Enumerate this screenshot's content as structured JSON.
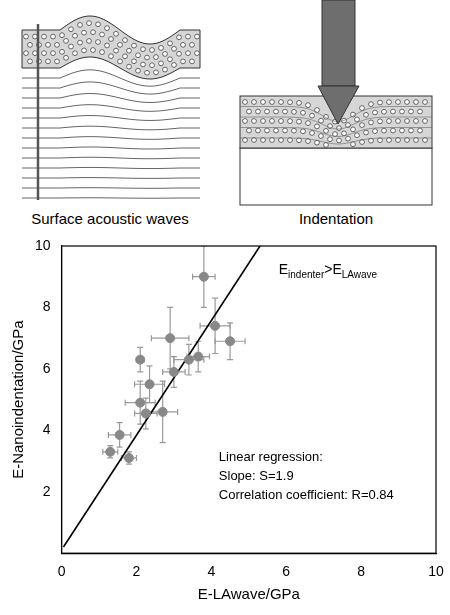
{
  "diagrams": [
    {
      "caption": "Surface acoustic waves"
    },
    {
      "caption": "Indentation"
    }
  ],
  "chart_data": {
    "type": "scatter",
    "x_label": "E-LAwave/GPa",
    "y_label": "E-Nanoindentation/GPa",
    "xlim": [
      0,
      10
    ],
    "ylim": [
      0,
      10
    ],
    "xticks": [
      0,
      2,
      4,
      6,
      8,
      10
    ],
    "yticks": [
      2,
      4,
      6,
      8,
      10
    ],
    "grid": false,
    "color": "#888888",
    "marker": "circle",
    "x": [
      1.3,
      1.55,
      1.8,
      2.1,
      2.1,
      2.25,
      2.35,
      2.7,
      2.9,
      3.0,
      3.4,
      3.65,
      3.8,
      4.1,
      4.5
    ],
    "y": [
      3.3,
      3.85,
      3.1,
      6.3,
      4.9,
      4.55,
      5.5,
      4.6,
      7.0,
      5.9,
      6.3,
      6.4,
      9.0,
      7.4,
      6.9
    ],
    "x_error": [
      0.2,
      0.3,
      0.2,
      0.1,
      0.4,
      0.3,
      0.4,
      0.4,
      0.5,
      0.3,
      0.4,
      0.3,
      0.3,
      0.4,
      0.4
    ],
    "y_error": [
      0.2,
      0.4,
      0.2,
      0.4,
      0.7,
      0.5,
      0.6,
      1.0,
      1.0,
      0.5,
      0.5,
      0.5,
      1.0,
      0.9,
      0.6
    ],
    "fit_line": {
      "x": [
        0.05,
        5.3
      ],
      "y": [
        0.2,
        10
      ],
      "color": "#000000",
      "line_style": "solid"
    },
    "annotations": [
      {
        "segments": [
          {
            "text": "E"
          },
          {
            "text": "indenter",
            "sub": true
          },
          {
            "text": ">"
          },
          {
            "text": "E"
          },
          {
            "text": "LAwave",
            "sub": true
          }
        ]
      },
      {
        "lines": [
          "Linear regression:",
          "Slope: S=1.9",
          "Correlation coefficient: R=0.84"
        ]
      }
    ]
  }
}
